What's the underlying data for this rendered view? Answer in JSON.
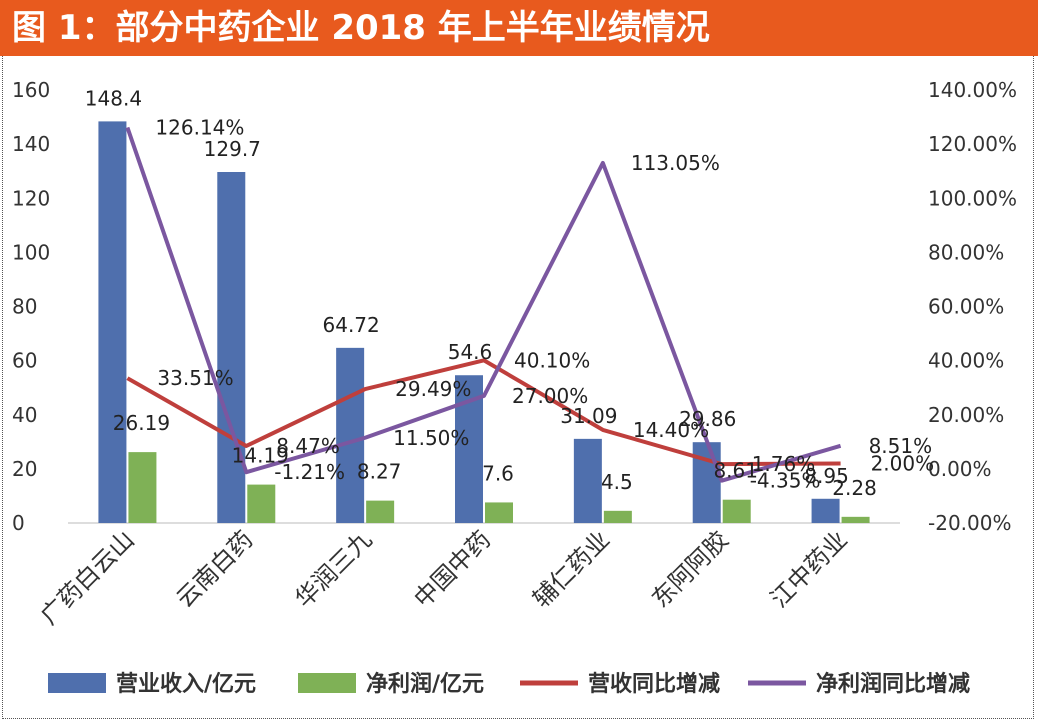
{
  "title": "图 1：部分中药企业 2018 年上半年业绩情况",
  "chart_data": {
    "type": "bar",
    "categories": [
      "广药白云山",
      "云南白药",
      "华润三九",
      "中国中药",
      "辅仁药业",
      "东阿阿胶",
      "江中药业"
    ],
    "series": [
      {
        "name": "营业收入/亿元",
        "kind": "bar",
        "axis": "left",
        "color": "#4f6fad",
        "values": [
          148.4,
          129.7,
          64.72,
          54.6,
          31.09,
          29.86,
          8.95
        ],
        "labels": [
          "148.4",
          "129.7",
          "64.72",
          "54.6",
          "31.09",
          "29.86",
          "8.95"
        ]
      },
      {
        "name": "净利润/亿元",
        "kind": "bar",
        "axis": "left",
        "color": "#7fb156",
        "values": [
          26.19,
          14.19,
          8.27,
          7.6,
          4.5,
          8.61,
          2.28
        ],
        "labels": [
          "26.19",
          "14.19",
          "8.27",
          "7.6",
          "4.5",
          "8.61",
          "2.28"
        ]
      },
      {
        "name": "营收同比增减",
        "kind": "line",
        "axis": "right",
        "color": "#bf3f3c",
        "values": [
          33.51,
          8.47,
          29.49,
          40.1,
          14.4,
          1.76,
          2.0
        ],
        "labels": [
          "33.51%",
          "8.47%",
          "29.49%",
          "40.10%",
          "14.40%",
          "1.76%",
          "2.00%"
        ]
      },
      {
        "name": "净利润同比增减",
        "kind": "line",
        "axis": "right",
        "color": "#7b57a0",
        "values": [
          126.14,
          -1.21,
          11.5,
          27.0,
          113.05,
          -4.35,
          8.51
        ],
        "labels": [
          "126.14%",
          "-1.21%",
          "11.50%",
          "27.00%",
          "113.05%",
          "-4.35%",
          "8.51%"
        ]
      }
    ],
    "yleft": {
      "min": 0,
      "max": 160,
      "ticks": [
        "0",
        "20",
        "40",
        "60",
        "80",
        "100",
        "120",
        "140",
        "160"
      ]
    },
    "yright": {
      "min": -20,
      "max": 140,
      "ticks": [
        "-20.00%",
        "0.00%",
        "20.00%",
        "40.00%",
        "60.00%",
        "80.00%",
        "100.00%",
        "120.00%",
        "140.00%"
      ]
    },
    "legend_position": "bottom",
    "grid": false
  }
}
